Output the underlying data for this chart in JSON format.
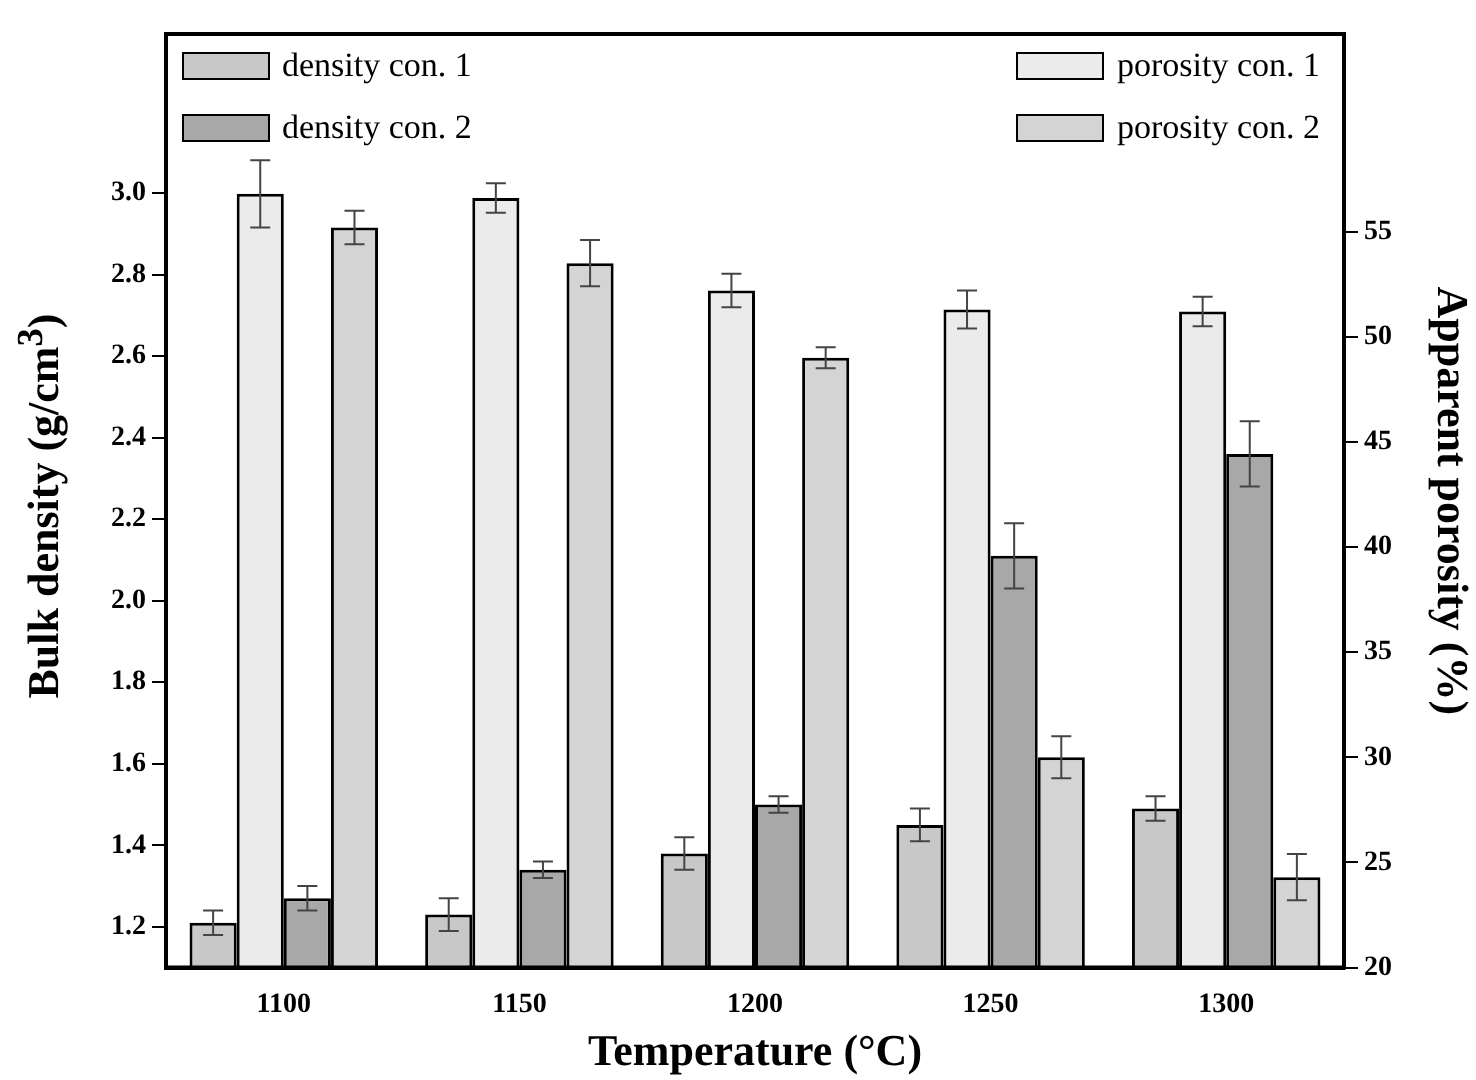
{
  "chart_data": {
    "type": "bar",
    "xlabel": "Temperature (°C)",
    "ylabel": "Bulk density (g/cm$^{3}$)",
    "y2label": "Apparent porosity (%)",
    "categories": [
      "1100",
      "1150",
      "1200",
      "1250",
      "1300"
    ],
    "series": [
      {
        "name": "density con. 1",
        "color": "#c8c8c8",
        "axis": "y",
        "values": [
          1.21,
          1.23,
          1.38,
          1.45,
          1.49
        ],
        "errors": [
          0.03,
          0.04,
          0.04,
          0.04,
          0.03
        ]
      },
      {
        "name": "porosity con. 1",
        "color": "#ebebeb",
        "axis": "y2",
        "values": [
          56.8,
          56.6,
          52.2,
          51.3,
          51.2
        ],
        "errors": [
          1.6,
          0.7,
          0.8,
          0.9,
          0.7
        ]
      },
      {
        "name": "density con. 2",
        "color": "#a8a8a8",
        "axis": "y",
        "values": [
          1.27,
          1.34,
          1.5,
          2.11,
          2.36
        ],
        "errors": [
          0.03,
          0.02,
          0.02,
          0.08,
          0.08
        ]
      },
      {
        "name": "porosity con. 2",
        "color": "#d4d4d4",
        "axis": "y2",
        "values": [
          55.2,
          53.5,
          49.0,
          30.0,
          24.3
        ],
        "errors": [
          0.8,
          1.1,
          0.5,
          1.0,
          1.1
        ]
      }
    ],
    "ylim": [
      1.1,
      3.39
    ],
    "yticks": [
      1.2,
      1.4,
      1.6,
      1.8,
      {
        "value": 2,
        "label": "2.0"
      },
      2.2,
      2.4,
      2.6,
      2.8,
      {
        "value": 3,
        "label": "3.0"
      }
    ],
    "y2lim": [
      20,
      64.4
    ],
    "y2ticks": [
      20,
      25,
      30,
      35,
      40,
      45,
      50,
      55
    ],
    "grid": false,
    "legend": "top"
  }
}
